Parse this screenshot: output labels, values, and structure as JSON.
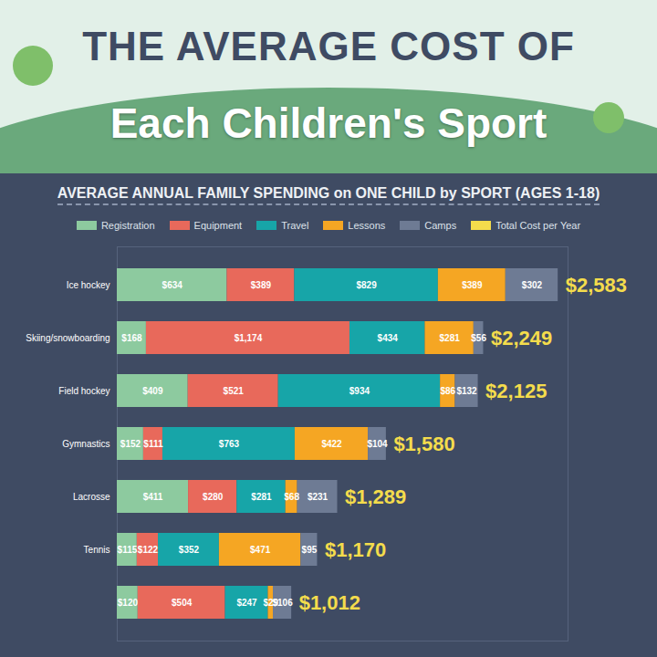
{
  "chart_data": {
    "type": "bar",
    "title": "THE AVERAGE COST OF Each Children's Sport",
    "subtitle": "AVERAGE ANNUAL FAMILY SPENDING on ONE CHILD by SPORT (AGES 1-18)",
    "orientation": "horizontal",
    "stacked": true,
    "data_labels": true,
    "tick_labels": "y",
    "legend": "top",
    "categories": [
      "Ice hockey",
      "Skiing/snowboarding",
      "Field hockey",
      "Gymnastics",
      "Lacrosse",
      "Tennis",
      null
    ],
    "xlim": [
      0,
      2600
    ],
    "xticks": [],
    "series": [
      {
        "name": "Registration",
        "color": "#8dca9f",
        "values": [
          634,
          168,
          409,
          152,
          411,
          115,
          120
        ],
        "value_labels": [
          "$634",
          "$168",
          "$409",
          "$152",
          "$411",
          "$115",
          "$120"
        ]
      },
      {
        "name": "Equipment",
        "color": "#e8695b",
        "values": [
          389,
          1174,
          521,
          111,
          280,
          122,
          504
        ],
        "value_labels": [
          "$389",
          "$1,174",
          "$521",
          "$111",
          "$280",
          "$122",
          "$504"
        ]
      },
      {
        "name": "Travel",
        "color": "#17a5a8",
        "values": [
          829,
          434,
          934,
          763,
          281,
          352,
          247
        ],
        "value_labels": [
          "$829",
          "$434",
          "$934",
          "$763",
          "$281",
          "$352",
          "$247"
        ]
      },
      {
        "name": "Lessons",
        "color": "#f5a623",
        "values": [
          389,
          281,
          86,
          422,
          68,
          471,
          29
        ],
        "value_labels": [
          "$389",
          "$281",
          "$86",
          "$422",
          "$68",
          "$471",
          "$29"
        ]
      },
      {
        "name": "Camps",
        "color": "#6e7b94",
        "values": [
          302,
          56,
          132,
          104,
          231,
          95,
          106
        ],
        "value_labels": [
          "$302",
          "$56",
          "$132",
          "$104",
          "$231",
          "$95",
          "$106"
        ]
      },
      {
        "name": "Total Cost per Year",
        "color": "#f4dc4c",
        "type": "text",
        "values": [
          2583,
          2249,
          2125,
          1580,
          1289,
          1170,
          1012
        ],
        "value_labels": [
          "$2,583",
          "$2,249",
          "$2,125",
          "$1,580",
          "$1,289",
          "$1,170",
          "$1,012"
        ]
      }
    ]
  }
}
